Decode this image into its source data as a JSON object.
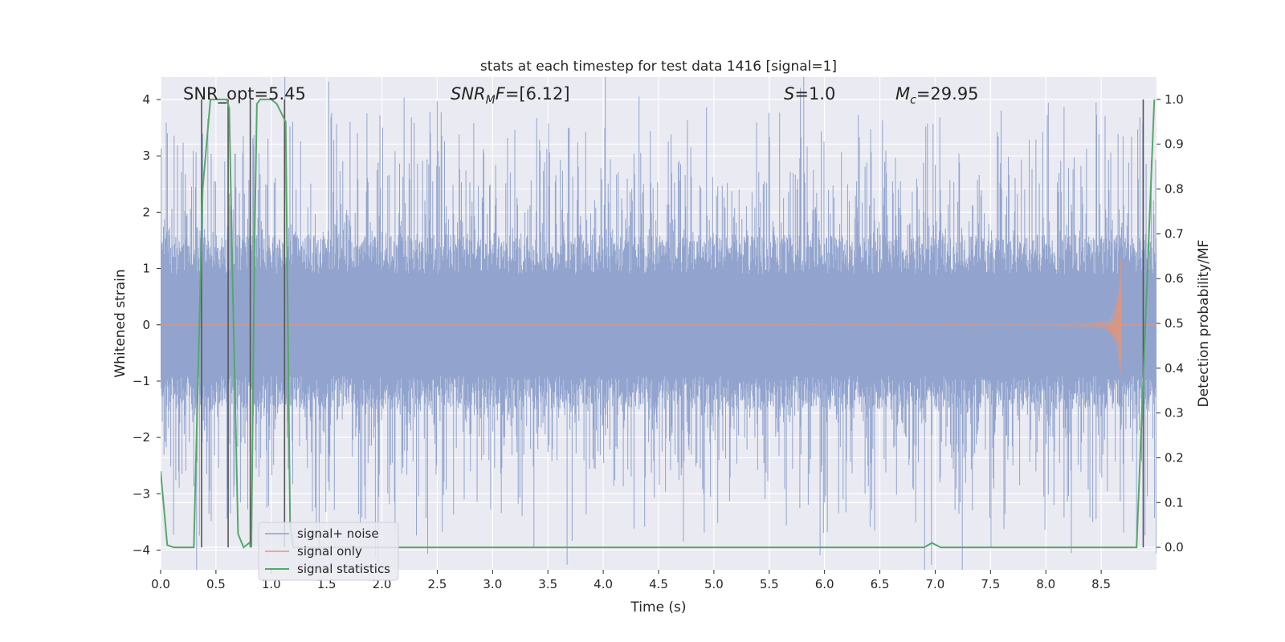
{
  "chart_data": {
    "type": "line",
    "title": "stats at each timestep for test data 1416 [signal=1]",
    "xlabel": "Time (s)",
    "ylabel": "Whitened strain",
    "ylabel_right": "Detection probability/MF",
    "xlim": [
      0,
      9.0
    ],
    "ylim": [
      -4.35,
      4.4
    ],
    "ylim_right": [
      -0.05,
      1.05
    ],
    "x_ticks": [
      "0.0",
      "0.5",
      "1.0",
      "1.5",
      "2.0",
      "2.5",
      "3.0",
      "3.5",
      "4.0",
      "4.5",
      "5.0",
      "5.5",
      "6.0",
      "6.5",
      "7.0",
      "7.5",
      "8.0",
      "8.5"
    ],
    "y_ticks": [
      "−4",
      "−3",
      "−2",
      "−1",
      "0",
      "1",
      "2",
      "3",
      "4"
    ],
    "y_ticks_right": [
      "0.0",
      "0.1",
      "0.2",
      "0.3",
      "0.4",
      "0.5",
      "0.6",
      "0.7",
      "0.8",
      "0.9",
      "1.0"
    ],
    "annotations": [
      {
        "parts": [
          {
            "t": "SNR_opt=5.45"
          }
        ]
      },
      {
        "parts": [
          {
            "t": "SNR",
            "i": true
          },
          {
            "t": "M",
            "i": true,
            "sub": true
          },
          {
            "t": "F",
            "i": true
          },
          {
            "t": "=[6.12]"
          }
        ]
      },
      {
        "parts": [
          {
            "t": "S",
            "i": true
          },
          {
            "t": "=1.0"
          }
        ]
      },
      {
        "parts": [
          {
            "t": "M",
            "i": true
          },
          {
            "t": "c",
            "i": true,
            "sub": true
          },
          {
            "t": "=29.95"
          }
        ]
      }
    ],
    "legend": {
      "placement": "lower-left",
      "entries": [
        "signal+ noise",
        "signal only",
        "signal statistics"
      ]
    },
    "colors": {
      "noise": "#8da0cb",
      "signal": "#e1967b",
      "stats": "#55a868",
      "vlines": "#555555",
      "background": "#eaeaf2",
      "grid": "#ffffff"
    },
    "series": [
      {
        "name": "signal statistics",
        "axis": "right",
        "x": [
          0.0,
          0.06,
          0.12,
          0.3,
          0.35,
          0.38,
          0.45,
          0.6,
          0.62,
          0.65,
          0.7,
          0.75,
          0.8,
          0.82,
          0.85,
          0.87,
          0.9,
          1.0,
          1.05,
          1.13,
          1.17,
          1.2,
          6.9,
          6.97,
          7.05,
          8.82,
          8.9,
          8.98
        ],
        "y": [
          0.17,
          0.005,
          0.0,
          0.0,
          0.5,
          0.8,
          1.0,
          1.0,
          0.98,
          0.6,
          0.03,
          0.0,
          0.01,
          0.0,
          0.7,
          0.99,
          1.0,
          1.0,
          0.99,
          0.95,
          0.05,
          0.0,
          0.0,
          0.01,
          0.0,
          0.0,
          0.5,
          1.0
        ]
      }
    ],
    "vertical_lines": [
      0.37,
      0.61,
      0.81,
      1.12,
      8.88
    ]
  }
}
